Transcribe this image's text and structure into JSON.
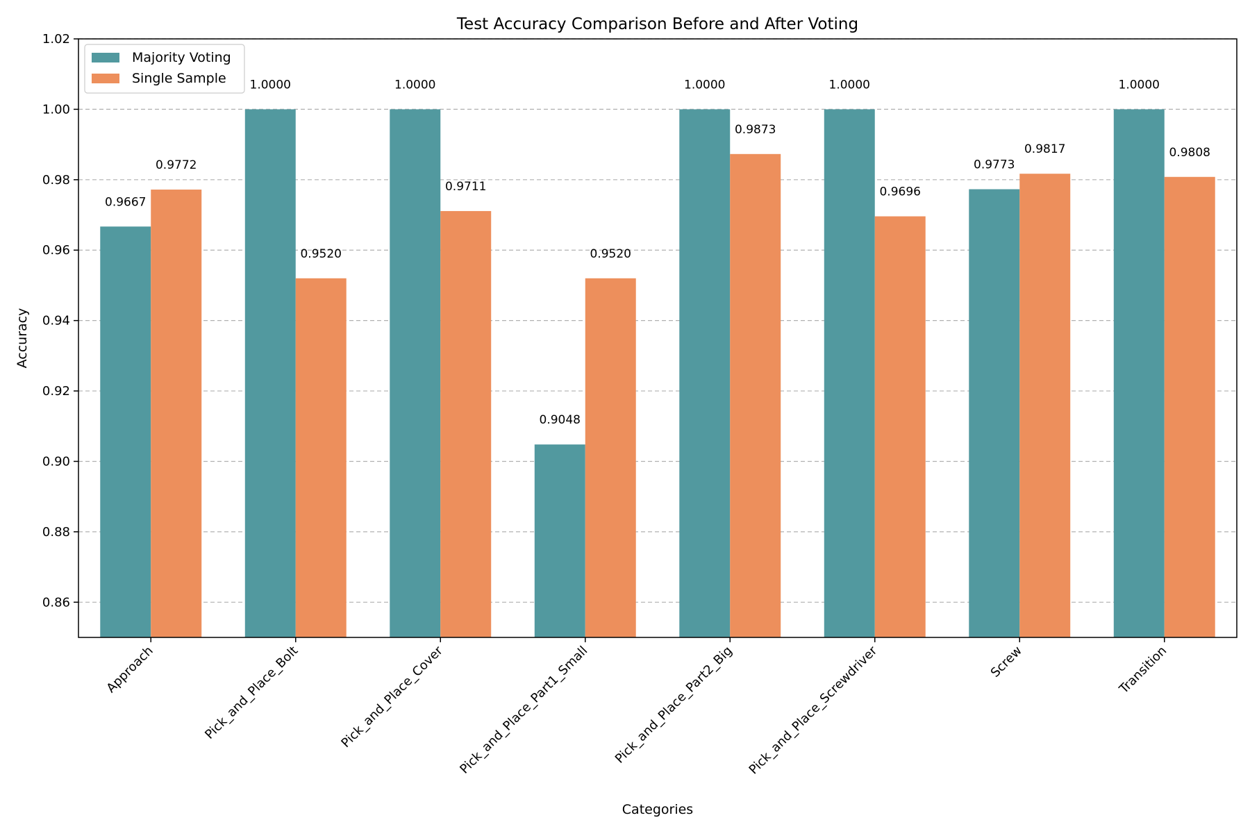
{
  "chart_data": {
    "type": "bar",
    "title": "Test Accuracy Comparison Before and After Voting",
    "xlabel": "Categories",
    "ylabel": "Accuracy",
    "ylim": [
      0.85,
      1.02
    ],
    "yticks": [
      0.86,
      0.88,
      0.9,
      0.92,
      0.94,
      0.96,
      0.98,
      1.0,
      1.02
    ],
    "ytick_labels": [
      "0.86",
      "0.88",
      "0.90",
      "0.92",
      "0.94",
      "0.96",
      "0.98",
      "1.00",
      "1.02"
    ],
    "grid": "horizontal dashed",
    "legend_position": "top-left",
    "categories": [
      "Approach",
      "Pick_and_Place_Bolt",
      "Pick_and_Place_Cover",
      "Pick_and_Place_Part1_Small",
      "Pick_and_Place_Part2_Big",
      "Pick_and_Place_Screwdriver",
      "Screw",
      "Transition"
    ],
    "series": [
      {
        "name": "Majority Voting",
        "color": "#52999f",
        "values": [
          0.9667,
          1.0,
          1.0,
          0.9048,
          1.0,
          1.0,
          0.9773,
          1.0
        ],
        "labels": [
          "0.9667",
          "1.0000",
          "1.0000",
          "0.9048",
          "1.0000",
          "1.0000",
          "0.9773",
          "1.0000"
        ]
      },
      {
        "name": "Single Sample",
        "color": "#ed8f5c",
        "values": [
          0.9772,
          0.952,
          0.9711,
          0.952,
          0.9873,
          0.9696,
          0.9817,
          0.9808
        ],
        "labels": [
          "0.9772",
          "0.9520",
          "0.9711",
          "0.9520",
          "0.9873",
          "0.9696",
          "0.9817",
          "0.9808"
        ]
      }
    ]
  }
}
